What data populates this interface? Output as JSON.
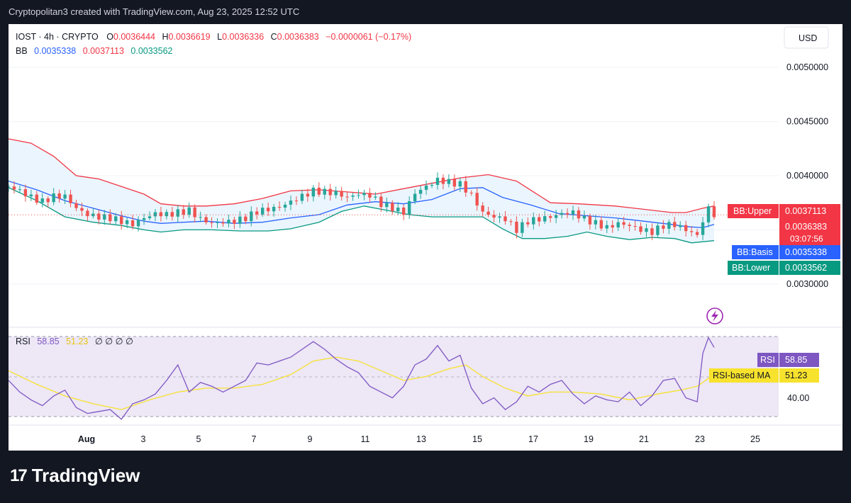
{
  "header": {
    "text": "Cryptopolitan3 created with TradingView.com, Aug 23, 2025 12:52 UTC"
  },
  "brand": {
    "logo_mark": "17",
    "name": "TradingView"
  },
  "colors": {
    "up": "#26a69a",
    "down": "#ef5350",
    "bb_upper": "#f23645",
    "bb_basis": "#2962ff",
    "bb_lower": "#089981",
    "bb_fill": "#e3f2fd",
    "rsi_line": "#7e57c2",
    "rsi_ma": "#f7e22d",
    "rsi_bg": "#ede7f6",
    "grid": "#f0f3fa",
    "axis_text": "#131722"
  },
  "chart_data": {
    "type": "candlestick",
    "symbol": "IOST",
    "timeframe": "4h",
    "exchange": "CRYPTO",
    "ohlc": {
      "O": "0.0036444",
      "H": "0.0036619",
      "L": "0.0036336",
      "C": "0.0036383",
      "change": "−0.0000061 (−0.17%)"
    },
    "legend_line1": {
      "symbol": "IOST · 4h · CRYPTO",
      "O": "0.0036444",
      "H": "0.0036619",
      "L": "0.0036336",
      "C": "0.0036383",
      "chg": "−0.0000061 (−0.17%)"
    },
    "bb_legend": {
      "name": "BB",
      "basis": "0.0035338",
      "upper": "0.0037113",
      "lower": "0.0033562"
    },
    "currency": "USD",
    "price_axis": {
      "ticks": [
        "0.0050000",
        "0.0045000",
        "0.0040000",
        "0.0030000"
      ],
      "ylim": [
        0.0026,
        0.0054
      ]
    },
    "price_labels": {
      "bb_upper_name": "BB:Upper",
      "bb_upper_value": "0.0037113",
      "last_price": "0.0036383",
      "countdown": "03:07:56",
      "bb_basis_name": "BB:Basis",
      "bb_basis_value": "0.0035338",
      "bb_lower_name": "BB:Lower",
      "bb_lower_value": "0.0033562"
    },
    "x_axis": {
      "labels": [
        "Aug",
        "3",
        "5",
        "7",
        "9",
        "11",
        "13",
        "15",
        "17",
        "19",
        "21",
        "23",
        "25"
      ]
    },
    "series": [
      {
        "name": "BB Upper",
        "points": [
          [
            0,
            0.00434
          ],
          [
            8,
            0.0043
          ],
          [
            16,
            0.00418
          ],
          [
            24,
            0.004
          ],
          [
            32,
            0.00397
          ],
          [
            40,
            0.0039
          ],
          [
            48,
            0.00383
          ],
          [
            54,
            0.00374
          ],
          [
            62,
            0.00372
          ],
          [
            70,
            0.00372
          ],
          [
            80,
            0.00374
          ],
          [
            90,
            0.00379
          ],
          [
            100,
            0.00386
          ],
          [
            110,
            0.00387
          ],
          [
            120,
            0.00385
          ],
          [
            130,
            0.00383
          ],
          [
            140,
            0.00388
          ],
          [
            150,
            0.00393
          ],
          [
            160,
            0.00398
          ],
          [
            170,
            0.00401
          ],
          [
            180,
            0.00395
          ],
          [
            186,
            0.00385
          ],
          [
            192,
            0.00375
          ],
          [
            202,
            0.00374
          ],
          [
            215,
            0.00372
          ],
          [
            225,
            0.00369
          ],
          [
            235,
            0.00366
          ],
          [
            240,
            0.00366
          ],
          [
            246,
            0.0037
          ],
          [
            250,
            0.00372
          ]
        ]
      },
      {
        "name": "BB Basis",
        "points": [
          [
            0,
            0.00395
          ],
          [
            10,
            0.00387
          ],
          [
            20,
            0.00377
          ],
          [
            30,
            0.0037
          ],
          [
            40,
            0.00363
          ],
          [
            48,
            0.00358
          ],
          [
            54,
            0.00356
          ],
          [
            62,
            0.00357
          ],
          [
            70,
            0.00358
          ],
          [
            80,
            0.00356
          ],
          [
            90,
            0.00357
          ],
          [
            100,
            0.00361
          ],
          [
            110,
            0.00364
          ],
          [
            120,
            0.00373
          ],
          [
            130,
            0.00376
          ],
          [
            140,
            0.00374
          ],
          [
            150,
            0.00378
          ],
          [
            160,
            0.00388
          ],
          [
            168,
            0.00389
          ],
          [
            175,
            0.0038
          ],
          [
            185,
            0.00373
          ],
          [
            195,
            0.00365
          ],
          [
            205,
            0.00363
          ],
          [
            215,
            0.00361
          ],
          [
            225,
            0.00358
          ],
          [
            235,
            0.00355
          ],
          [
            240,
            0.00353
          ],
          [
            246,
            0.00352
          ],
          [
            250,
            0.00355
          ]
        ]
      },
      {
        "name": "BB Lower",
        "points": [
          [
            0,
            0.00389
          ],
          [
            10,
            0.00377
          ],
          [
            20,
            0.00362
          ],
          [
            30,
            0.00357
          ],
          [
            40,
            0.00354
          ],
          [
            48,
            0.0035
          ],
          [
            54,
            0.00348
          ],
          [
            62,
            0.0035
          ],
          [
            72,
            0.0035
          ],
          [
            82,
            0.00349
          ],
          [
            92,
            0.00349
          ],
          [
            100,
            0.00351
          ],
          [
            110,
            0.00357
          ],
          [
            118,
            0.00367
          ],
          [
            126,
            0.00372
          ],
          [
            134,
            0.00368
          ],
          [
            142,
            0.00364
          ],
          [
            150,
            0.00362
          ],
          [
            160,
            0.00362
          ],
          [
            168,
            0.00362
          ],
          [
            175,
            0.00351
          ],
          [
            182,
            0.00342
          ],
          [
            190,
            0.00342
          ],
          [
            198,
            0.00344
          ],
          [
            205,
            0.00348
          ],
          [
            212,
            0.00344
          ],
          [
            220,
            0.00341
          ],
          [
            228,
            0.00343
          ],
          [
            236,
            0.00342
          ],
          [
            242,
            0.00338
          ],
          [
            246,
            0.00339
          ],
          [
            250,
            0.0034
          ]
        ]
      },
      {
        "name": "Candle closes",
        "points": [
          [
            0,
            0.0039
          ],
          [
            4,
            0.00386
          ],
          [
            8,
            0.0038
          ],
          [
            12,
            0.00376
          ],
          [
            16,
            0.00381
          ],
          [
            20,
            0.00381
          ],
          [
            24,
            0.0037
          ],
          [
            28,
            0.00364
          ],
          [
            32,
            0.00362
          ],
          [
            36,
            0.00361
          ],
          [
            40,
            0.00358
          ],
          [
            44,
            0.00355
          ],
          [
            48,
            0.00361
          ],
          [
            52,
            0.00365
          ],
          [
            56,
            0.00364
          ],
          [
            60,
            0.00366
          ],
          [
            64,
            0.00368
          ],
          [
            68,
            0.0036
          ],
          [
            72,
            0.00356
          ],
          [
            76,
            0.00357
          ],
          [
            80,
            0.00358
          ],
          [
            84,
            0.00361
          ],
          [
            88,
            0.00367
          ],
          [
            92,
            0.00369
          ],
          [
            96,
            0.00371
          ],
          [
            100,
            0.00376
          ],
          [
            104,
            0.00381
          ],
          [
            108,
            0.00386
          ],
          [
            112,
            0.00385
          ],
          [
            116,
            0.00384
          ],
          [
            120,
            0.0038
          ],
          [
            124,
            0.00383
          ],
          [
            128,
            0.00382
          ],
          [
            132,
            0.00374
          ],
          [
            136,
            0.0037
          ],
          [
            140,
            0.00366
          ],
          [
            144,
            0.00384
          ],
          [
            148,
            0.0039
          ],
          [
            152,
            0.00396
          ],
          [
            156,
            0.00394
          ],
          [
            160,
            0.00392
          ],
          [
            164,
            0.00382
          ],
          [
            168,
            0.00366
          ],
          [
            172,
            0.00362
          ],
          [
            176,
            0.0036
          ],
          [
            180,
            0.0035
          ],
          [
            184,
            0.00358
          ],
          [
            188,
            0.0036
          ],
          [
            192,
            0.00362
          ],
          [
            196,
            0.00365
          ],
          [
            200,
            0.00366
          ],
          [
            204,
            0.0036
          ],
          [
            208,
            0.00356
          ],
          [
            212,
            0.00352
          ],
          [
            216,
            0.00356
          ],
          [
            220,
            0.00354
          ],
          [
            224,
            0.0035
          ],
          [
            228,
            0.00348
          ],
          [
            232,
            0.00354
          ],
          [
            236,
            0.00355
          ],
          [
            240,
            0.0035
          ],
          [
            244,
            0.00345
          ],
          [
            246,
            0.00358
          ],
          [
            248,
            0.0037
          ],
          [
            250,
            0.00364
          ]
        ]
      }
    ],
    "rsi": {
      "legend": {
        "name": "RSI",
        "rsi": "58.85",
        "ma": "51.23",
        "extras": "∅ ∅ ∅ ∅"
      },
      "tick": "40.00",
      "rsi_label": "RSI",
      "rsi_value": "58.85",
      "ma_label": "RSI-based MA",
      "ma_value": "51.23",
      "ylim": [
        25,
        75
      ],
      "rsi_points": [
        [
          0,
          48
        ],
        [
          4,
          42
        ],
        [
          8,
          38
        ],
        [
          12,
          35
        ],
        [
          16,
          40
        ],
        [
          20,
          43
        ],
        [
          24,
          34
        ],
        [
          28,
          31
        ],
        [
          32,
          32
        ],
        [
          36,
          33
        ],
        [
          40,
          28
        ],
        [
          44,
          36
        ],
        [
          48,
          38
        ],
        [
          52,
          41
        ],
        [
          56,
          48
        ],
        [
          60,
          56
        ],
        [
          64,
          42
        ],
        [
          68,
          47
        ],
        [
          72,
          45
        ],
        [
          76,
          42
        ],
        [
          80,
          45
        ],
        [
          84,
          48
        ],
        [
          88,
          57
        ],
        [
          92,
          56
        ],
        [
          96,
          58
        ],
        [
          100,
          60
        ],
        [
          104,
          64
        ],
        [
          108,
          68
        ],
        [
          112,
          64
        ],
        [
          116,
          59
        ],
        [
          120,
          55
        ],
        [
          124,
          52
        ],
        [
          128,
          45
        ],
        [
          132,
          42
        ],
        [
          136,
          39
        ],
        [
          140,
          45
        ],
        [
          144,
          56
        ],
        [
          148,
          59
        ],
        [
          152,
          66
        ],
        [
          156,
          58
        ],
        [
          160,
          61
        ],
        [
          164,
          44
        ],
        [
          168,
          36
        ],
        [
          172,
          39
        ],
        [
          176,
          33
        ],
        [
          180,
          37
        ],
        [
          184,
          45
        ],
        [
          188,
          42
        ],
        [
          192,
          46
        ],
        [
          196,
          48
        ],
        [
          200,
          41
        ],
        [
          204,
          36
        ],
        [
          208,
          40
        ],
        [
          212,
          38
        ],
        [
          216,
          37
        ],
        [
          220,
          42
        ],
        [
          224,
          35
        ],
        [
          228,
          40
        ],
        [
          232,
          48
        ],
        [
          236,
          49
        ],
        [
          240,
          39
        ],
        [
          244,
          37
        ],
        [
          246,
          62
        ],
        [
          248,
          70
        ],
        [
          250,
          65
        ]
      ],
      "ma_points": [
        [
          0,
          53
        ],
        [
          10,
          46
        ],
        [
          20,
          40
        ],
        [
          30,
          36
        ],
        [
          40,
          33
        ],
        [
          50,
          38
        ],
        [
          60,
          42
        ],
        [
          70,
          44
        ],
        [
          80,
          44
        ],
        [
          90,
          46
        ],
        [
          100,
          51
        ],
        [
          108,
          58
        ],
        [
          116,
          60
        ],
        [
          124,
          58
        ],
        [
          132,
          53
        ],
        [
          140,
          48
        ],
        [
          148,
          50
        ],
        [
          156,
          54
        ],
        [
          162,
          56
        ],
        [
          168,
          50
        ],
        [
          176,
          44
        ],
        [
          184,
          40
        ],
        [
          192,
          42
        ],
        [
          200,
          42
        ],
        [
          210,
          41
        ],
        [
          220,
          38
        ],
        [
          230,
          41
        ],
        [
          238,
          43
        ],
        [
          244,
          45
        ],
        [
          250,
          51
        ]
      ]
    }
  }
}
